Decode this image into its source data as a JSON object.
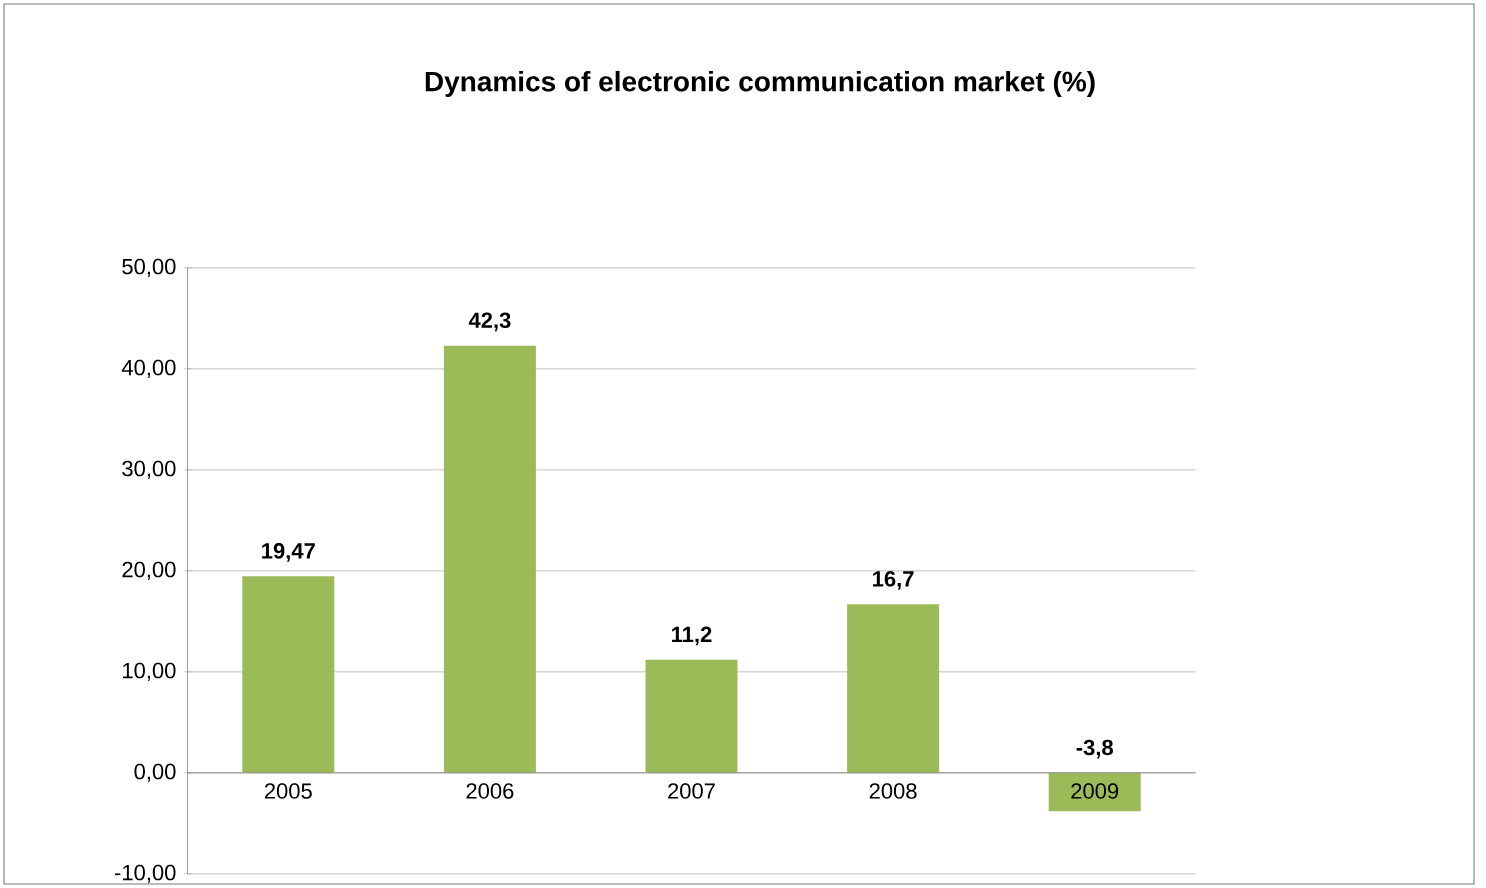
{
  "chart_data": {
    "type": "bar",
    "title": "Dynamics of electronic communication market (%)",
    "categories": [
      "2005",
      "2006",
      "2007",
      "2008",
      "2009"
    ],
    "values": [
      19.47,
      42.3,
      11.2,
      16.7,
      -3.8
    ],
    "value_labels": [
      "19,47",
      "42,3",
      "11,2",
      "16,7",
      "-3,8"
    ],
    "color": "#9bbb59",
    "ylim": [
      -10,
      50
    ],
    "yticks": [
      {
        "value": -10,
        "label": "-10,00"
      },
      {
        "value": 0,
        "label": "0,00"
      },
      {
        "value": 10,
        "label": "10,00"
      },
      {
        "value": 20,
        "label": "20,00"
      },
      {
        "value": 30,
        "label": "30,00"
      },
      {
        "value": 40,
        "label": "40,00"
      },
      {
        "value": 50,
        "label": "50,00"
      }
    ],
    "grid": "y"
  }
}
